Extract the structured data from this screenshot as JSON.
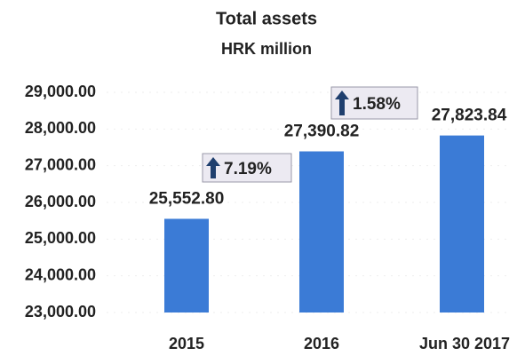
{
  "chart_data": {
    "type": "bar",
    "title": "Total assets",
    "subtitle": "HRK million",
    "categories": [
      "2015",
      "2016",
      "Jun 30 2017"
    ],
    "values": [
      25552.8,
      27390.82,
      27823.84
    ],
    "value_labels": [
      "25,552.80",
      "27,390.82",
      "27,823.84"
    ],
    "color": "#3b7bd6",
    "ylim": [
      23000,
      29000
    ],
    "yticks": [
      {
        "value": 23000,
        "label": "23,000.00"
      },
      {
        "value": 24000,
        "label": "24,000.00"
      },
      {
        "value": 25000,
        "label": "25,000.00"
      },
      {
        "value": 26000,
        "label": "26,000.00"
      },
      {
        "value": 27000,
        "label": "27,000.00"
      },
      {
        "value": 28000,
        "label": "28,000.00"
      },
      {
        "value": 29000,
        "label": "29,000.00"
      }
    ],
    "grid": true,
    "annotations": [
      "7.19%",
      "1.58%"
    ]
  }
}
